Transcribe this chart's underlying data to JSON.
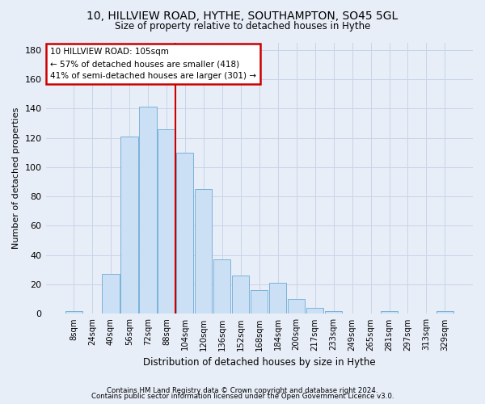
{
  "title": "10, HILLVIEW ROAD, HYTHE, SOUTHAMPTON, SO45 5GL",
  "subtitle": "Size of property relative to detached houses in Hythe",
  "xlabel": "Distribution of detached houses by size in Hythe",
  "ylabel": "Number of detached properties",
  "footer_line1": "Contains HM Land Registry data © Crown copyright and database right 2024.",
  "footer_line2": "Contains public sector information licensed under the Open Government Licence v3.0.",
  "bar_labels": [
    "8sqm",
    "24sqm",
    "40sqm",
    "56sqm",
    "72sqm",
    "88sqm",
    "104sqm",
    "120sqm",
    "136sqm",
    "152sqm",
    "168sqm",
    "184sqm",
    "200sqm",
    "217sqm",
    "233sqm",
    "249sqm",
    "265sqm",
    "281sqm",
    "297sqm",
    "313sqm",
    "329sqm"
  ],
  "bar_values": [
    2,
    0,
    27,
    121,
    141,
    126,
    110,
    85,
    37,
    26,
    16,
    21,
    10,
    4,
    2,
    0,
    0,
    2,
    0,
    0,
    2
  ],
  "bar_color": "#cce0f5",
  "bar_edge_color": "#6aaad4",
  "grid_color": "#c8d4e8",
  "background_color": "#e8eef8",
  "vline_bin_index": 6,
  "annotation_text_line1": "10 HILLVIEW ROAD: 105sqm",
  "annotation_text_line2": "← 57% of detached houses are smaller (418)",
  "annotation_text_line3": "41% of semi-detached houses are larger (301) →",
  "annotation_box_color": "#ffffff",
  "annotation_border_color": "#cc0000",
  "vline_color": "#cc0000",
  "ylim": [
    0,
    185
  ],
  "yticks": [
    0,
    20,
    40,
    60,
    80,
    100,
    120,
    140,
    160,
    180
  ]
}
